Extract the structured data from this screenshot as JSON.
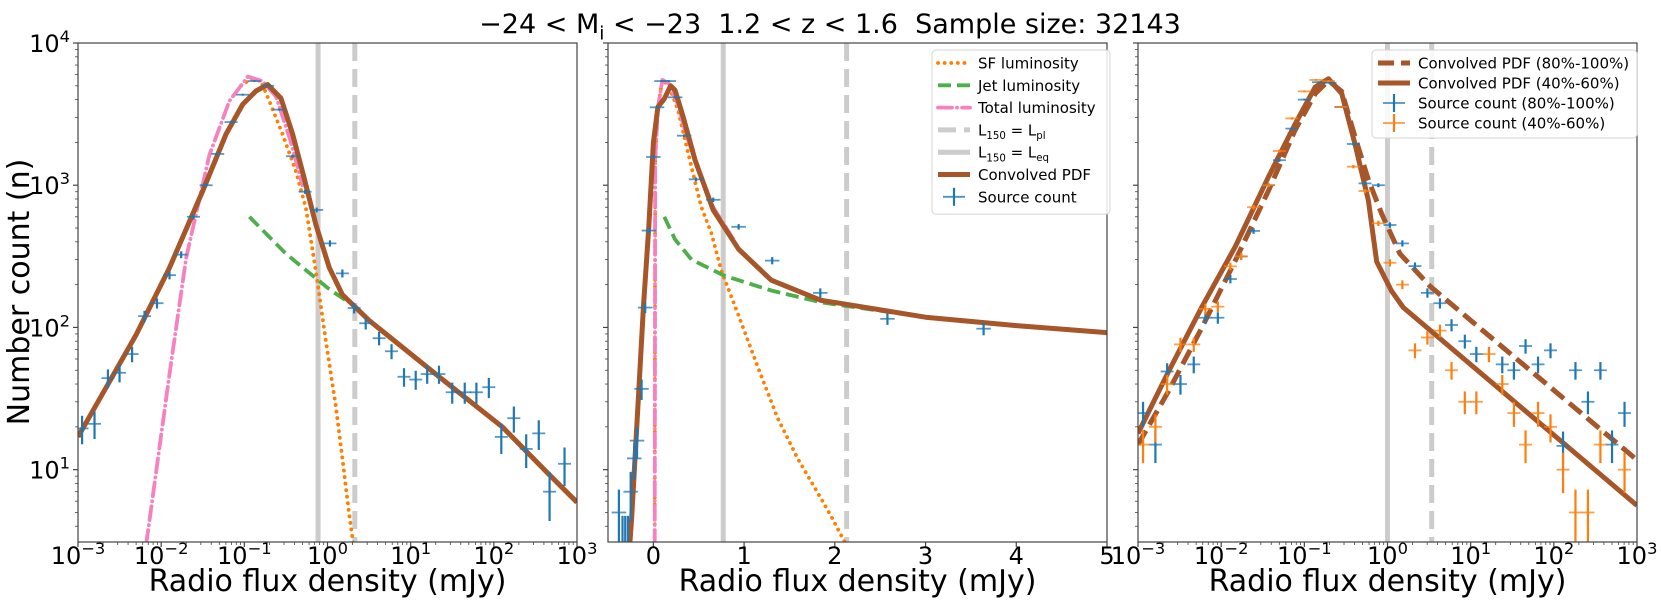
{
  "title": "−24 < M_i < −23  1.2 < z < 1.6  Sample size: 32143",
  "colors": {
    "sf": "#ff7f00",
    "jet": "#4daf4a",
    "total": "#f781bf",
    "convolved": "#a65628",
    "source_blue": "#1f77b4",
    "source_orange": "#ff7f0e",
    "reference_lines": "#cccccc"
  },
  "chart_data": [
    {
      "type": "line+errorbar",
      "xscale": "log",
      "yscale": "log",
      "xlim": [
        0.001,
        1000
      ],
      "ylim": [
        3.1,
        10000
      ],
      "xlabel": "Radio flux density (mJy)",
      "ylabel": "Number count (n)",
      "grid": false,
      "xticks": [
        {
          "value": 0.001,
          "label": "10^−3"
        },
        {
          "value": 0.01,
          "label": "10^−2"
        },
        {
          "value": 0.1,
          "label": "10^−1"
        },
        {
          "value": 1,
          "label": "10^0"
        },
        {
          "value": 10,
          "label": "10^1"
        },
        {
          "value": 100,
          "label": "10^2"
        },
        {
          "value": 1000,
          "label": "10^3"
        }
      ],
      "yticks": [
        {
          "value": 10,
          "label": "10^1"
        },
        {
          "value": 100,
          "label": "10^2"
        },
        {
          "value": 1000,
          "label": "10^3"
        },
        {
          "value": 10000,
          "label": "10^4"
        }
      ],
      "vlines": [
        {
          "x": 0.77,
          "style": "solid",
          "color": "#cccccc"
        },
        {
          "x": 2.13,
          "style": "dashed",
          "color": "#cccccc"
        }
      ],
      "series": [
        {
          "kind": "line",
          "style": "dotted",
          "color": "#ff7f00",
          "x": [
            0.0912,
            0.12,
            0.158,
            0.2,
            0.288,
            0.417,
            0.55,
            0.724,
            0.955,
            1.26,
            1.51,
            1.82,
            2.04
          ],
          "y": [
            5000,
            5600,
            5400,
            3900,
            2290,
            1250,
            690,
            250,
            81,
            28,
            12,
            4.9,
            3.0
          ]
        },
        {
          "kind": "line",
          "style": "dashed",
          "color": "#4daf4a",
          "x": [
            0.115,
            0.316,
            1.0,
            1.66
          ],
          "y": [
            600,
            330,
            190,
            155
          ]
        },
        {
          "kind": "line",
          "style": "dashdot",
          "color": "#f781bf",
          "x": [
            0.0066,
            0.00724,
            0.0126,
            0.02,
            0.038,
            0.066,
            0.11,
            0.166,
            0.24,
            0.355,
            0.5
          ],
          "y": [
            3.0,
            4.4,
            47,
            310,
            1630,
            3900,
            5800,
            5400,
            4200,
            2100,
            1000
          ]
        },
        {
          "kind": "line",
          "style": "solid",
          "color": "#a65628",
          "x": [
            0.001,
            0.00219,
            0.00501,
            0.0126,
            0.0316,
            0.0603,
            0.0955,
            0.138,
            0.191,
            0.275,
            0.38,
            0.525,
            0.724,
            1.05,
            1.51,
            3.16,
            20,
            126,
            457,
            1000
          ],
          "y": [
            17,
            38,
            89,
            263,
            910,
            2290,
            3700,
            4600,
            5100,
            4100,
            2290,
            1120,
            530,
            263,
            170,
            112,
            47,
            20,
            9.3,
            5.9
          ]
        },
        {
          "kind": "errorbar",
          "color": "#1f77b4",
          "x": [
            0.00112,
            0.00158,
            0.00229,
            0.00316,
            0.00447,
            0.00631,
            0.00891,
            0.0126,
            0.0174,
            0.0245,
            0.0347,
            0.0479,
            0.0692,
            0.0955,
            0.132,
            0.191,
            0.263,
            0.38,
            0.537,
            0.741,
            1.07,
            1.51,
            2.09,
            2.88,
            4.17,
            5.89,
            8.32,
            11.5,
            15.8,
            21.9,
            31.6,
            44.7,
            61.7,
            87.1,
            123,
            174,
            245,
            347,
            468,
            708
          ],
          "y": [
            19.5,
            21,
            44,
            48,
            65,
            120,
            148,
            233,
            325,
            600,
            1000,
            1660,
            2780,
            4330,
            5400,
            5000,
            3400,
            1600,
            900,
            670,
            390,
            240,
            137,
            107,
            84,
            68,
            45,
            43,
            47,
            47,
            35,
            35,
            35,
            38,
            17,
            23,
            14,
            18,
            7,
            11
          ]
        }
      ]
    },
    {
      "type": "line+errorbar",
      "xscale": "linear",
      "yscale": "log",
      "xlim": [
        -0.5,
        5
      ],
      "ylim": [
        3.1,
        10000
      ],
      "xlabel": "Radio flux density (mJy)",
      "grid": false,
      "xticks": [
        {
          "value": 0,
          "label": "0"
        },
        {
          "value": 1,
          "label": "1"
        },
        {
          "value": 2,
          "label": "2"
        },
        {
          "value": 3,
          "label": "3"
        },
        {
          "value": 4,
          "label": "4"
        },
        {
          "value": 5,
          "label": "5"
        }
      ],
      "yticks": [
        {
          "value": 10
        },
        {
          "value": 100
        },
        {
          "value": 1000
        },
        {
          "value": 10000
        }
      ],
      "vlines": [
        {
          "x": 2.13,
          "style": "dashed",
          "color": "#cccccc",
          "label": "L_150 = L_pl"
        },
        {
          "x": 0.77,
          "style": "solid",
          "color": "#cccccc",
          "label": "L_150 = L_eq"
        }
      ],
      "series": [
        {
          "name": "SF luminosity",
          "kind": "line",
          "style": "dotted",
          "color": "#ff7f00",
          "x": [
            0.015,
            0.02,
            0.05,
            0.1,
            0.17,
            0.27,
            0.35,
            0.42,
            0.53,
            0.64,
            0.75,
            0.93,
            1.15,
            1.37,
            1.59,
            1.81,
            1.96,
            2.12
          ],
          "y": [
            3.0,
            1500,
            3500,
            5500,
            5000,
            3400,
            2080,
            1340,
            700,
            460,
            250,
            126,
            53,
            23,
            12,
            6.9,
            4.7,
            3.0
          ]
        },
        {
          "name": "Jet luminosity",
          "kind": "line",
          "style": "dashed",
          "color": "#4daf4a",
          "x": [
            0.12,
            0.24,
            0.42,
            0.79,
            1.3,
            1.85,
            3.0,
            4.0,
            5.0
          ],
          "y": [
            600,
            415,
            300,
            230,
            182,
            150,
            118,
            103,
            92
          ]
        },
        {
          "name": "Total luminosity",
          "kind": "line",
          "style": "dashdot",
          "color": "#f781bf",
          "x": [
            0.015,
            0.02,
            0.05,
            0.1,
            0.17,
            0.27,
            0.35,
            0.46,
            0.66,
            0.9
          ],
          "y": [
            3.0,
            1500,
            3500,
            5500,
            5200,
            3700,
            2400,
            1500,
            700,
            400
          ]
        },
        {
          "name": "Convolved PDF",
          "kind": "line",
          "style": "solid",
          "color": "#a65628",
          "x": [
            -0.26,
            -0.24,
            -0.16,
            -0.11,
            -0.05,
            0.0,
            0.05,
            0.12,
            0.19,
            0.24,
            0.33,
            0.46,
            0.66,
            0.94,
            1.3,
            1.85,
            2.05,
            3.0,
            4.0,
            5.0
          ],
          "y": [
            3.0,
            4.5,
            36,
            138,
            510,
            2000,
            3550,
            4050,
            5000,
            4650,
            3000,
            1500,
            670,
            355,
            215,
            155,
            148,
            118,
            103,
            92
          ]
        },
        {
          "name": "Source count",
          "kind": "errorbar",
          "color": "#1f77b4",
          "x": [
            -0.38,
            -0.34,
            -0.31,
            -0.28,
            -0.25,
            -0.21,
            -0.18,
            -0.13,
            -0.09,
            -0.05,
            0.0,
            0.04,
            0.09,
            0.17,
            0.24,
            0.34,
            0.47,
            0.66,
            0.94,
            1.31,
            1.84,
            2.58,
            3.64
          ],
          "y": [
            5,
            3,
            3,
            3,
            7,
            12,
            16,
            37,
            138,
            480,
            1580,
            3530,
            5400,
            5400,
            4150,
            2230,
            1100,
            790,
            510,
            295,
            175,
            115,
            98
          ]
        }
      ],
      "legend": {
        "placement": "upper right",
        "entries": [
          {
            "series": 0
          },
          {
            "series": 1
          },
          {
            "series": 2
          },
          {
            "vline": 0
          },
          {
            "vline": 1
          },
          {
            "series": 3
          },
          {
            "series": 4
          }
        ]
      }
    },
    {
      "type": "line+errorbar",
      "xscale": "log",
      "yscale": "log",
      "xlim": [
        0.001,
        1000
      ],
      "ylim": [
        3.1,
        10000
      ],
      "xlabel": "Radio flux density (mJy)",
      "grid": false,
      "xticks": [
        {
          "value": 0.001,
          "label": "10^−3"
        },
        {
          "value": 0.01,
          "label": "10^−2"
        },
        {
          "value": 0.1,
          "label": "10^−1"
        },
        {
          "value": 1,
          "label": "10^0"
        },
        {
          "value": 10,
          "label": "10^1"
        },
        {
          "value": 100,
          "label": "10^2"
        },
        {
          "value": 1000,
          "label": "10^3"
        }
      ],
      "yticks": [
        {
          "value": 10
        },
        {
          "value": 100
        },
        {
          "value": 1000
        },
        {
          "value": 10000
        }
      ],
      "vlines": [
        {
          "x": 1.0,
          "style": "solid",
          "color": "#cccccc"
        },
        {
          "x": 3.4,
          "style": "dashed",
          "color": "#cccccc"
        }
      ],
      "series": [
        {
          "name": "Convolved PDF (80%-100%)",
          "kind": "line",
          "style": "dashed-thick",
          "color": "#a65628",
          "x": [
            0.001,
            0.00229,
            0.00589,
            0.0148,
            0.0372,
            0.0776,
            0.135,
            0.195,
            0.282,
            0.407,
            0.589,
            0.851,
            1.41,
            3.24,
            1000
          ],
          "y": [
            15,
            35,
            100,
            295,
            920,
            2450,
            4400,
            5450,
            4550,
            2190,
            1090,
            630,
            330,
            195,
            11.7
          ]
        },
        {
          "name": "Convolved PDF (40%-60%)",
          "kind": "line",
          "style": "solid",
          "color": "#a65628",
          "x": [
            0.001,
            0.00229,
            0.00589,
            0.0148,
            0.0372,
            0.0776,
            0.135,
            0.195,
            0.282,
            0.407,
            0.589,
            0.741,
            1.12,
            1.55,
            1000
          ],
          "y": [
            18,
            48,
            140,
            370,
            1150,
            2700,
            4900,
            5600,
            4400,
            1950,
            780,
            290,
            180,
            138,
            5.6
          ]
        },
        {
          "name": "Source count (80%-100%)",
          "kind": "errorbar",
          "color": "#1f77b4",
          "x": [
            0.00115,
            0.00162,
            0.00224,
            0.00324,
            0.00468,
            0.00646,
            0.00912,
            0.0129,
            0.0174,
            0.0245,
            0.0372,
            0.0501,
            0.0708,
            0.1,
            0.148,
            0.204,
            0.275,
            0.389,
            0.537,
            0.776,
            1.07,
            1.51,
            2.14,
            3.02,
            4.27,
            5.89,
            8.51,
            11.7,
            24,
            33.1,
            45.7,
            64.6,
            91.2,
            129,
            182,
            257,
            363,
            501,
            708
          ],
          "y": [
            25,
            15,
            49,
            40,
            55,
            117,
            117,
            219,
            316,
            477,
            1000,
            1500,
            2500,
            4000,
            5300,
            5250,
            3550,
            1950,
            1030,
            1000,
            525,
            390,
            270,
            175,
            148,
            104,
            80,
            65,
            55,
            50,
            74,
            55,
            69,
            14.7,
            50,
            30,
            50,
            15,
            25
          ]
        },
        {
          "name": "Source count (40%-60%)",
          "kind": "errorbar",
          "color": "#ff7f0e",
          "x": [
            0.00115,
            0.00162,
            0.00224,
            0.00324,
            0.00468,
            0.00646,
            0.00912,
            0.0129,
            0.0174,
            0.0245,
            0.0372,
            0.0501,
            0.0708,
            0.1,
            0.138,
            0.195,
            0.275,
            0.389,
            0.537,
            0.776,
            1.07,
            1.51,
            2.14,
            3.02,
            4.27,
            5.89,
            8.51,
            11.7,
            16.6,
            24,
            33.1,
            45.7,
            64.6,
            91.2,
            129,
            182,
            257,
            363,
            708
          ],
          "y": [
            15,
            20,
            40,
            76,
            76,
            135,
            140,
            269,
            316,
            700,
            1000,
            1740,
            2950,
            4570,
            5500,
            5400,
            3550,
            1350,
            910,
            540,
            285,
            200,
            69,
            85,
            95,
            50,
            30,
            30,
            65,
            40,
            25,
            15,
            25,
            20,
            10,
            5,
            5,
            15,
            10
          ]
        }
      ],
      "legend": {
        "placement": "upper right",
        "entries": [
          {
            "series": 0
          },
          {
            "series": 1
          },
          {
            "series": 2
          },
          {
            "series": 3
          }
        ]
      }
    }
  ]
}
